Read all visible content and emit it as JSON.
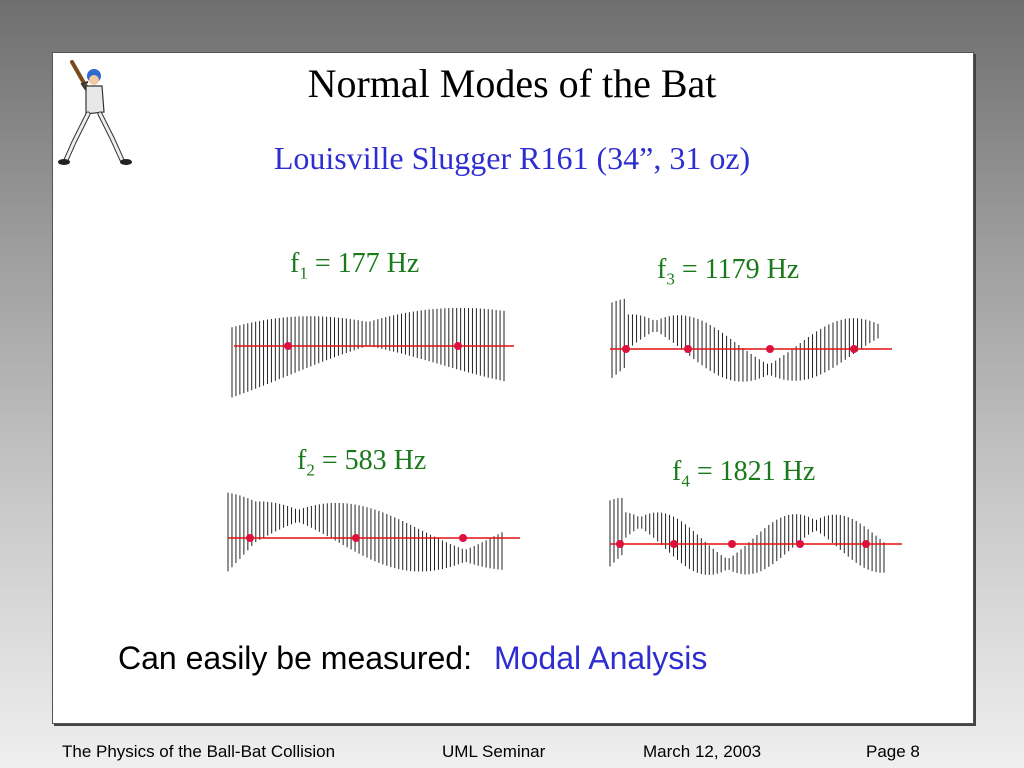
{
  "title": "Normal Modes of the Bat",
  "subtitle": "Louisville Slugger R161 (34”, 31 oz)",
  "modes": [
    {
      "prefix": "f",
      "sub": "1",
      "suffix": " = 177 Hz"
    },
    {
      "prefix": "f",
      "sub": "2",
      "suffix": " = 583 Hz"
    },
    {
      "prefix": "f",
      "sub": "3",
      "suffix": " = 1179 Hz"
    },
    {
      "prefix": "f",
      "sub": "4",
      "suffix": " = 1821 Hz"
    }
  ],
  "caption": {
    "text": "Can easily be measured:",
    "highlight": "Modal Analysis"
  },
  "footer": {
    "course": "The Physics of the Ball-Bat Collision",
    "venue": "UML Seminar",
    "date": "March 12, 2003",
    "page": "Page 8"
  },
  "colors": {
    "title_blue": "#2e2ed0",
    "label_green": "#1a7a1a",
    "axis_red": "#e01010",
    "node_red": "#e0103c"
  },
  "icons": [
    "baseball-batter-icon"
  ]
}
